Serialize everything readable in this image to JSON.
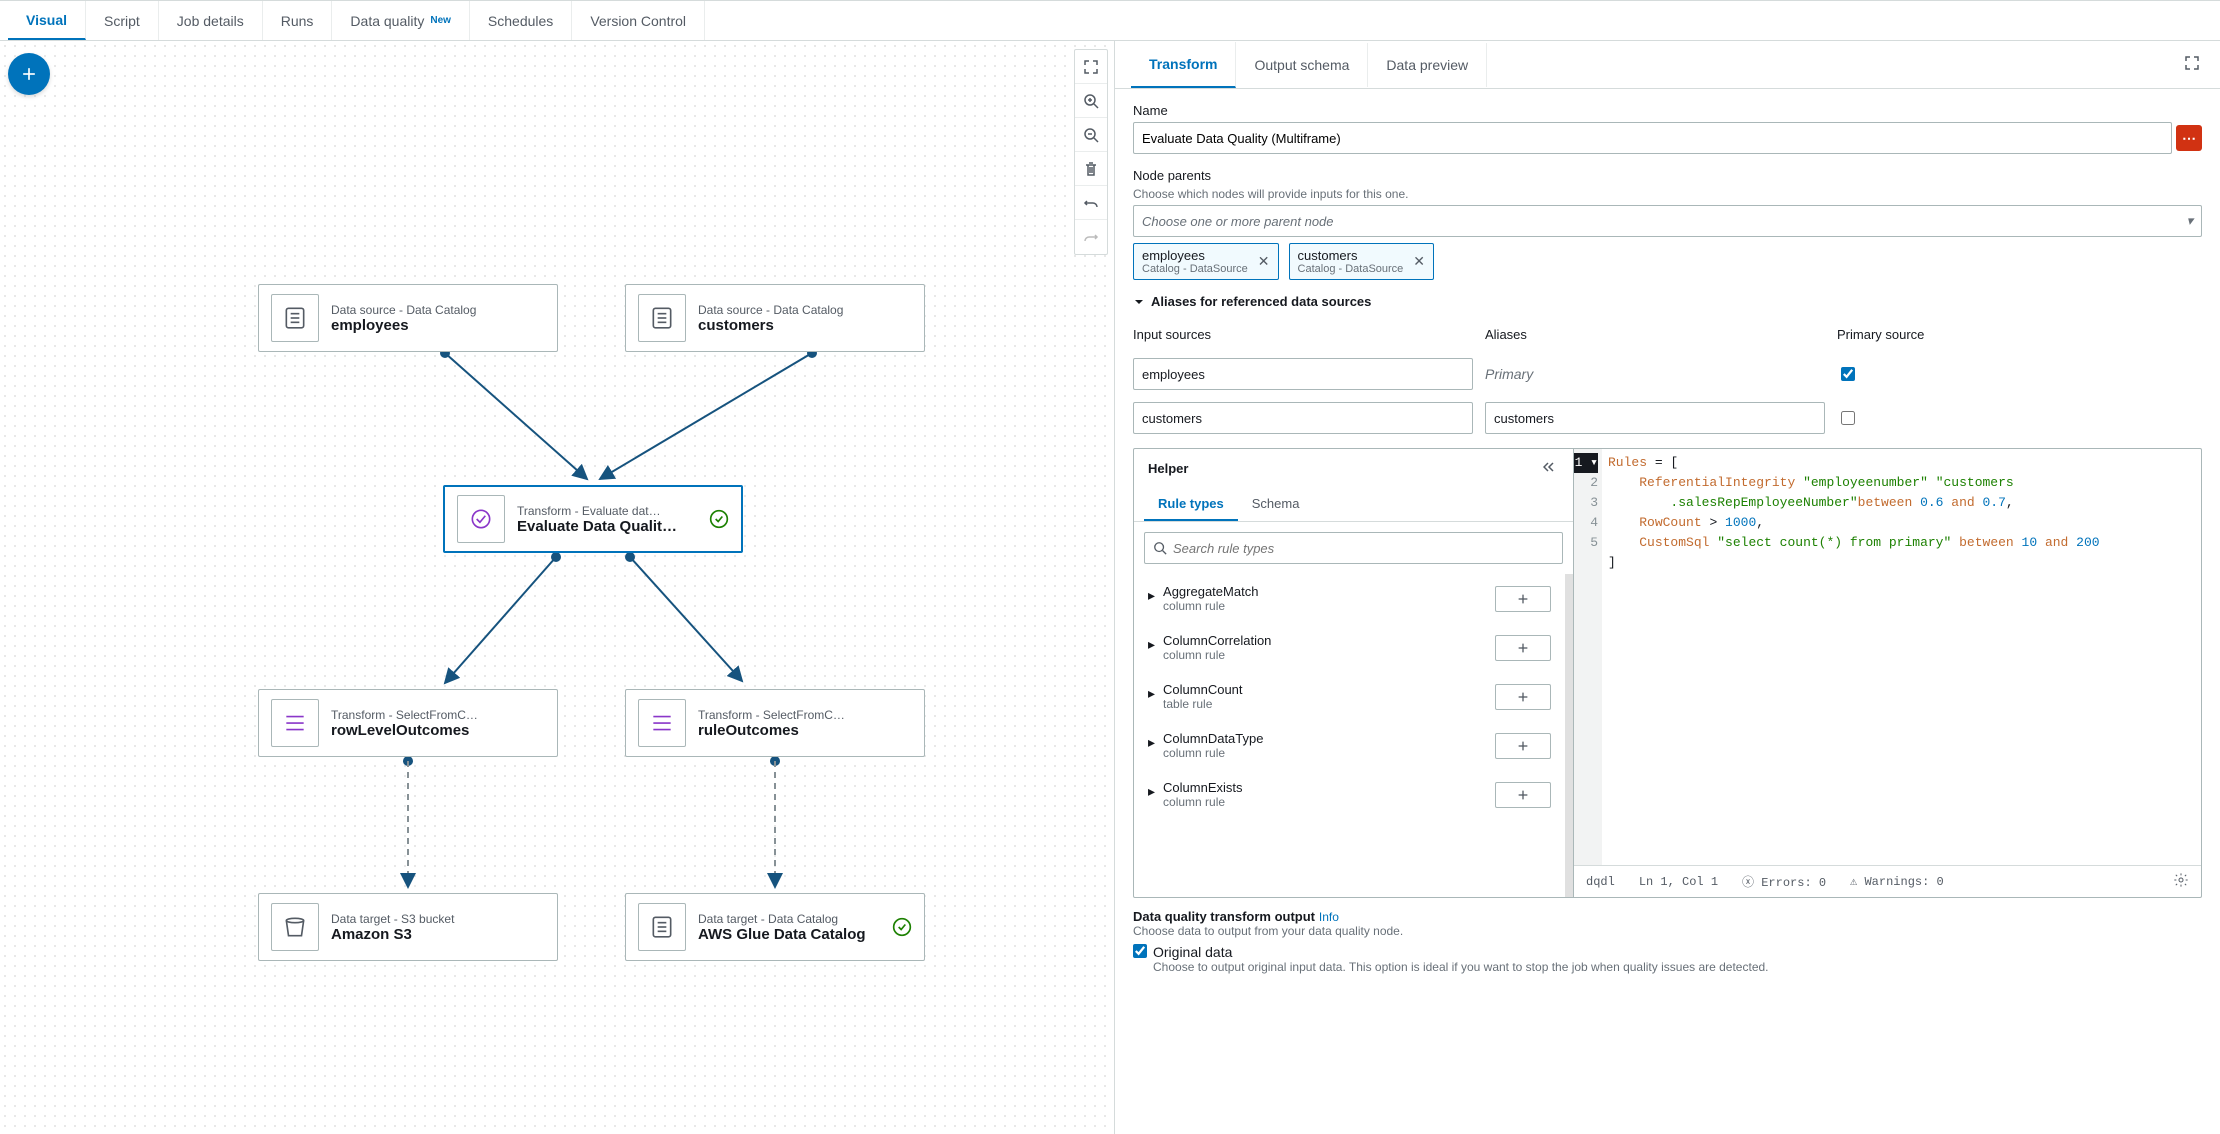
{
  "tabs": [
    "Visual",
    "Script",
    "Job details",
    "Runs",
    "Data quality",
    "Schedules",
    "Version Control"
  ],
  "newBadge": "New",
  "canvas": {
    "nodes": {
      "n1": {
        "type": "Data source - Data Catalog",
        "name": "employees"
      },
      "n2": {
        "type": "Data source - Data Catalog",
        "name": "customers"
      },
      "n3": {
        "type": "Transform - Evaluate dat…",
        "name": "Evaluate Data Qualit…"
      },
      "n4": {
        "type": "Transform - SelectFromC…",
        "name": "rowLevelOutcomes"
      },
      "n5": {
        "type": "Transform - SelectFromC…",
        "name": "ruleOutcomes"
      },
      "n6": {
        "type": "Data target - S3 bucket",
        "name": "Amazon S3"
      },
      "n7": {
        "type": "Data target - Data Catalog",
        "name": "AWS Glue Data Catalog"
      }
    }
  },
  "panel": {
    "tabs": [
      "Transform",
      "Output schema",
      "Data preview"
    ],
    "name": {
      "label": "Name",
      "value": "Evaluate Data Quality (Multiframe)"
    },
    "parents": {
      "label": "Node parents",
      "desc": "Choose which nodes will provide inputs for this one.",
      "placeholder": "Choose one or more parent node",
      "chips": [
        {
          "name": "employees",
          "sub": "Catalog - DataSource"
        },
        {
          "name": "customers",
          "sub": "Catalog - DataSource"
        }
      ]
    },
    "aliases": {
      "title": "Aliases for referenced data sources",
      "cols": [
        "Input sources",
        "Aliases",
        "Primary source"
      ],
      "rows": [
        {
          "input": "employees",
          "alias": "Primary",
          "primary": true,
          "isPrimaryLabel": true
        },
        {
          "input": "customers",
          "alias": "customers",
          "primary": false
        }
      ]
    },
    "helper": {
      "title": "Helper",
      "tabs": [
        "Rule types",
        "Schema"
      ],
      "searchPlaceholder": "Search rule types",
      "rules": [
        {
          "name": "AggregateMatch",
          "desc": "column rule"
        },
        {
          "name": "ColumnCorrelation",
          "desc": "column rule"
        },
        {
          "name": "ColumnCount",
          "desc": "table rule"
        },
        {
          "name": "ColumnDataType",
          "desc": "column rule"
        },
        {
          "name": "ColumnExists",
          "desc": "column rule"
        }
      ]
    },
    "editor": {
      "lines": 5,
      "status": {
        "lang": "dqdl",
        "pos": "Ln 1, Col 1",
        "errors": "Errors: 0",
        "warnings": "Warnings: 0"
      }
    },
    "output": {
      "title": "Data quality transform output",
      "info": "Info",
      "desc": "Choose data to output from your data quality node.",
      "option": "Original data",
      "optionDesc": "Choose to output original input data. This option is ideal if you want to stop the job when quality issues are detected."
    }
  }
}
